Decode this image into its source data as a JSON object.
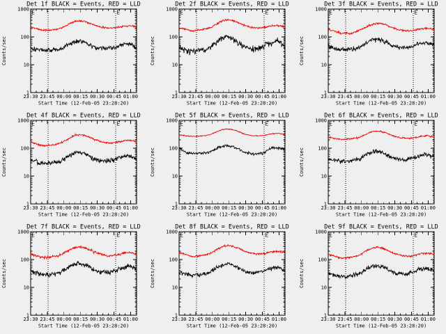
{
  "page": {
    "background_color": "#efefef",
    "foreground_color": "#000000",
    "events_color": "#000000",
    "lld_color": "#ee0000"
  },
  "chart_data": {
    "type": "line",
    "layout": "3x3-small-multiples",
    "yscale": "log",
    "ylim": [
      1,
      1000
    ],
    "ytick_labels": [
      "1000",
      "100",
      "10",
      "1"
    ],
    "ylabel": "Counts/sec",
    "xlabel": "Start Time (12-Feb-05 23:28:20)",
    "xtick_labels": [
      "23:30",
      "23:45",
      "00:00",
      "00:15",
      "00:30",
      "00:45",
      "01:00"
    ],
    "xticks_minutes": [
      0,
      15,
      30,
      45,
      60,
      75,
      90
    ],
    "minor_xtick_step_minutes": 5,
    "x_range_minutes": [
      0,
      95.4
    ],
    "grid": "off",
    "legend": "in-title",
    "event_lines_minutes": [
      15.7,
      76.5,
      94.7
    ],
    "event_markers": [
      {
        "label": "E",
        "minute": 0.8
      },
      {
        "label": "E",
        "minute": 77.5
      }
    ],
    "anchor_minutes": [
      0,
      4,
      8,
      12,
      16,
      20,
      24,
      28,
      32,
      36,
      40,
      44,
      48,
      52,
      56,
      60,
      64,
      68,
      72,
      76,
      80,
      84,
      88,
      92,
      95
    ],
    "plots": [
      {
        "title": "Det 1f BLACK = Events, RED = LLD",
        "series": [
          {
            "name": "Events",
            "color": "#000000",
            "noise": 0.14,
            "seed": 101,
            "values": [
              40,
              38,
              35,
              33,
              33,
              34,
              35,
              38,
              48,
              60,
              70,
              73,
              67,
              57,
              47,
              41,
              40,
              39,
              40,
              41,
              48,
              54,
              56,
              50,
              40
            ]
          },
          {
            "name": "LLD",
            "color": "#ee0000",
            "noise": 0.055,
            "seed": 102,
            "values": [
              220,
              205,
              185,
              172,
              175,
              182,
              192,
              212,
              255,
              310,
              360,
              385,
              368,
              325,
              282,
              248,
              222,
              214,
              210,
              213,
              228,
              242,
              250,
              244,
              228
            ]
          }
        ]
      },
      {
        "title": "Det 2f BLACK = Events, RED = LLD",
        "series": [
          {
            "name": "Events",
            "color": "#000000",
            "noise": 0.18,
            "seed": 201,
            "values": [
              42,
              37,
              32,
              30,
              31,
              33,
              36,
              42,
              58,
              80,
              92,
              100,
              88,
              68,
              50,
              42,
              38,
              36,
              40,
              46,
              62,
              55,
              80,
              62,
              45
            ]
          },
          {
            "name": "LLD",
            "color": "#ee0000",
            "noise": 0.055,
            "seed": 202,
            "values": [
              215,
              195,
              175,
              165,
              170,
              180,
              192,
              215,
              265,
              330,
              390,
              410,
              390,
              340,
              290,
              250,
              225,
              215,
              212,
              218,
              235,
              248,
              255,
              248,
              235
            ]
          }
        ]
      },
      {
        "title": "Det 3f BLACK = Events, RED = LLD",
        "series": [
          {
            "name": "Events",
            "color": "#000000",
            "noise": 0.13,
            "seed": 301,
            "values": [
              48,
              42,
              37,
              35,
              36,
              37,
              38,
              42,
              52,
              66,
              78,
              83,
              78,
              66,
              52,
              44,
              42,
              41,
              43,
              45,
              55,
              60,
              62,
              57,
              50
            ]
          },
          {
            "name": "LLD",
            "color": "#ee0000",
            "noise": 0.06,
            "seed": 302,
            "values": [
              180,
              165,
              148,
              135,
              140,
              128,
              152,
              170,
              205,
              250,
              290,
              310,
              300,
              268,
              230,
              200,
              178,
              168,
              165,
              170,
              185,
              198,
              205,
              200,
              185
            ]
          }
        ]
      },
      {
        "title": "Det 4f BLACK = Events, RED = LLD",
        "series": [
          {
            "name": "Events",
            "color": "#000000",
            "noise": 0.14,
            "seed": 401,
            "values": [
              38,
              34,
              30,
              28,
              29,
              30,
              32,
              36,
              45,
              58,
              66,
              70,
              64,
              54,
              44,
              38,
              36,
              35,
              37,
              39,
              46,
              51,
              53,
              48,
              40
            ]
          },
          {
            "name": "LLD",
            "color": "#ee0000",
            "noise": 0.06,
            "seed": 402,
            "values": [
              165,
              150,
              132,
              122,
              126,
              133,
              142,
              158,
              195,
              245,
              290,
              310,
              295,
              260,
              220,
              190,
              168,
              158,
              155,
              158,
              172,
              188,
              196,
              190,
              172
            ]
          }
        ]
      },
      {
        "title": "Det 5f BLACK = Events, RED = LLD",
        "series": [
          {
            "name": "Events",
            "color": "#000000",
            "noise": 0.09,
            "seed": 501,
            "values": [
              100,
              80,
              68,
              63,
              64,
              66,
              68,
              75,
              90,
              108,
              118,
              122,
              115,
              100,
              82,
              68,
              63,
              62,
              64,
              68,
              85,
              100,
              105,
              100,
              92
            ]
          },
          {
            "name": "LLD",
            "color": "#ee0000",
            "noise": 0.03,
            "seed": 502,
            "values": [
              300,
              285,
              272,
              265,
              268,
              275,
              285,
              310,
              365,
              430,
              475,
              490,
              470,
              420,
              360,
              315,
              290,
              280,
              278,
              285,
              310,
              330,
              340,
              330,
              310
            ]
          }
        ]
      },
      {
        "title": "Det 6f BLACK = Events, RED = LLD",
        "series": [
          {
            "name": "Events",
            "color": "#000000",
            "noise": 0.13,
            "seed": 601,
            "values": [
              42,
              39,
              36,
              34,
              34,
              35,
              37,
              40,
              50,
              63,
              72,
              76,
              70,
              60,
              49,
              43,
              41,
              40,
              41,
              43,
              50,
              57,
              60,
              55,
              48
            ]
          },
          {
            "name": "LLD",
            "color": "#ee0000",
            "noise": 0.05,
            "seed": 602,
            "values": [
              250,
              235,
              218,
              205,
              208,
              215,
              225,
              245,
              290,
              350,
              400,
              420,
              400,
              355,
              305,
              268,
              242,
              232,
              228,
              232,
              250,
              268,
              278,
              270,
              252
            ]
          }
        ]
      },
      {
        "title": "Det 7f BLACK = Events, RED = LLD",
        "series": [
          {
            "name": "Events",
            "color": "#000000",
            "noise": 0.15,
            "seed": 701,
            "values": [
              40,
              35,
              31,
              29,
              30,
              31,
              33,
              37,
              47,
              60,
              70,
              73,
              66,
              55,
              45,
              38,
              36,
              35,
              37,
              39,
              47,
              53,
              56,
              52,
              44
            ]
          },
          {
            "name": "LLD",
            "color": "#ee0000",
            "noise": 0.08,
            "seed": 702,
            "values": [
              160,
              145,
              128,
              118,
              122,
              128,
              136,
              152,
              190,
              235,
              270,
              285,
              270,
              238,
              200,
              170,
              150,
              140,
              137,
              140,
              155,
              170,
              178,
              172,
              158
            ]
          }
        ]
      },
      {
        "title": "Det 8f BLACK = Events, RED = LLD",
        "series": [
          {
            "name": "Events",
            "color": "#000000",
            "noise": 0.14,
            "seed": 801,
            "values": [
              36,
              32,
              29,
              27,
              28,
              29,
              31,
              35,
              44,
              57,
              66,
              70,
              64,
              53,
              43,
              37,
              35,
              34,
              36,
              38,
              45,
              50,
              52,
              48,
              42
            ]
          },
          {
            "name": "LLD",
            "color": "#ee0000",
            "noise": 0.06,
            "seed": 802,
            "values": [
              175,
              160,
              142,
              130,
              134,
              140,
              150,
              167,
              205,
              255,
              300,
              320,
              305,
              268,
              225,
              192,
              170,
              160,
              157,
              160,
              175,
              190,
              198,
              192,
              175
            ]
          }
        ]
      },
      {
        "title": "Det 9f BLACK = Events, RED = LLD",
        "series": [
          {
            "name": "Events",
            "color": "#000000",
            "noise": 0.14,
            "seed": 901,
            "values": [
              32,
              29,
              26,
              24,
              25,
              26,
              28,
              31,
              39,
              50,
              58,
              62,
              57,
              48,
              39,
              33,
              31,
              30,
              32,
              34,
              41,
              46,
              48,
              45,
              38
            ]
          },
          {
            "name": "LLD",
            "color": "#ee0000",
            "noise": 0.06,
            "seed": 902,
            "values": [
              150,
              138,
              122,
              112,
              116,
              122,
              130,
              145,
              180,
              225,
              260,
              275,
              260,
              228,
              192,
              162,
              145,
              136,
              133,
              136,
              150,
              163,
              170,
              165,
              150
            ]
          }
        ]
      }
    ]
  }
}
